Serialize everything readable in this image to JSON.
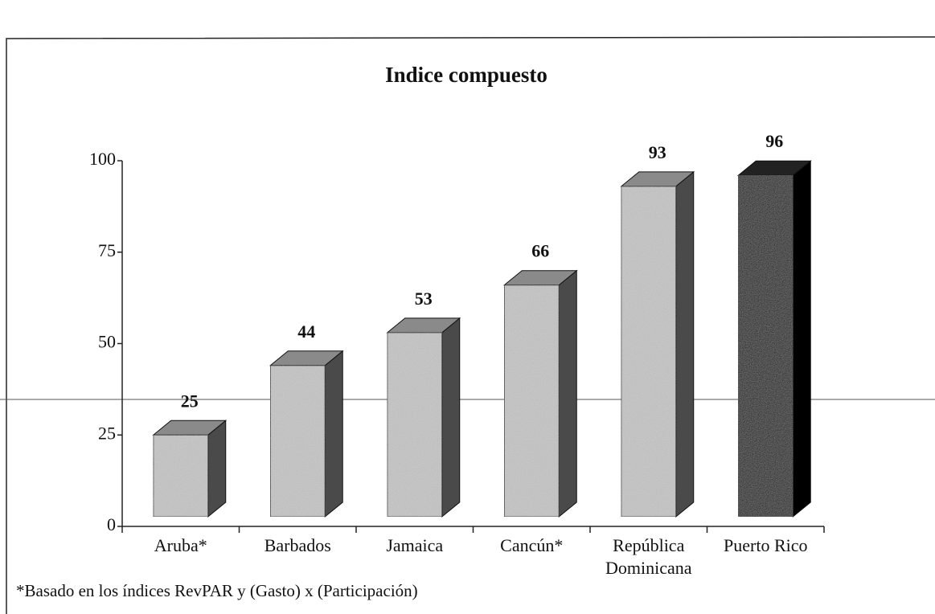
{
  "chart_data": {
    "type": "bar3d",
    "title": "Indice compuesto",
    "categories": [
      "Aruba*",
      "Barbados",
      "Jamaica",
      "Cancún*",
      "República Dominicana",
      "Puerto Rico"
    ],
    "values": [
      25,
      44,
      53,
      66,
      93,
      96
    ],
    "colors": [
      "#c4c4c4",
      "#c4c4c4",
      "#c4c4c4",
      "#c4c4c4",
      "#c4c4c4",
      "#111111"
    ],
    "ylim": [
      0,
      100
    ],
    "yticks": [
      0,
      25,
      50,
      75,
      100
    ],
    "footnote": "*Basado en los índices RevPAR y (Gasto) x (Participación)"
  }
}
